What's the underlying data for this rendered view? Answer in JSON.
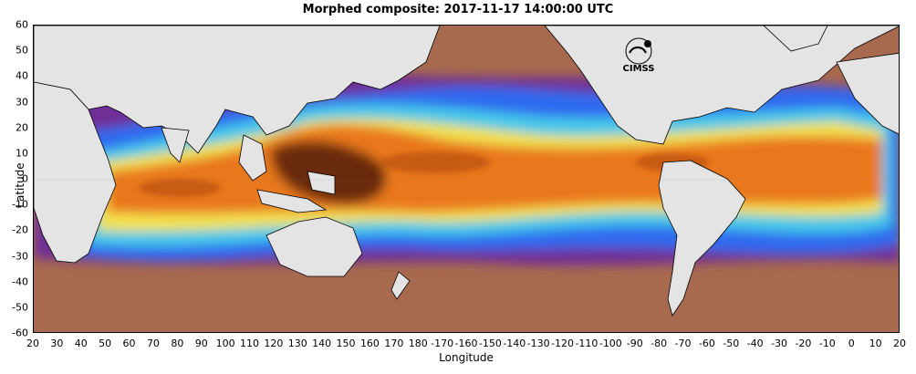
{
  "title": "Morphed composite: 2017-11-17 14:00:00 UTC",
  "axes": {
    "xlabel": "Longitude",
    "ylabel": "Latitude",
    "xticks": [
      "20",
      "30",
      "40",
      "50",
      "60",
      "70",
      "80",
      "90",
      "100",
      "110",
      "120",
      "130",
      "140",
      "150",
      "160",
      "170",
      "180",
      "-170",
      "-160",
      "-150",
      "-140",
      "-130",
      "-120",
      "-110",
      "-100",
      "-90",
      "-80",
      "-70",
      "-60",
      "-50",
      "-40",
      "-30",
      "-20",
      "-10",
      "0",
      "10",
      "20"
    ],
    "yticks": [
      "60",
      "50",
      "40",
      "30",
      "20",
      "10",
      "0",
      "-10",
      "-20",
      "-30",
      "-40",
      "-50",
      "-60"
    ]
  },
  "logo_text": "CIMSS",
  "colors": {
    "land": "#e4e4e4",
    "dry_ocean": "#a86a4e",
    "purple": "#6f2f97",
    "blue": "#2f6bef",
    "cyan": "#46c9e8",
    "green": "#8fe27a",
    "yellow": "#f2e24e",
    "orange": "#e9781e",
    "dark": "#6a2a0c"
  }
}
